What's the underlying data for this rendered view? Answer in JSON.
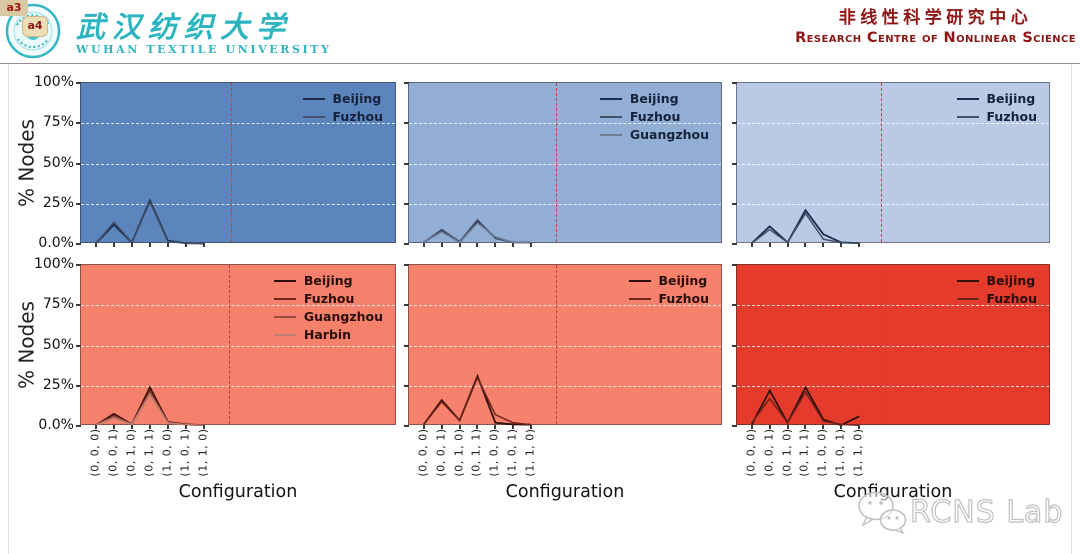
{
  "badges": {
    "a3": "a3",
    "a4": "a4"
  },
  "header": {
    "university_cn": "武汉纺织大学",
    "university_en": "WUHAN TEXTILE UNIVERSITY",
    "centre_cn": "非线性科学研究中心",
    "centre_en": "Research Centre of Nonlinear Science",
    "accent_teal": "#2cb5c0",
    "accent_dark_red": "#8e1515"
  },
  "watermark": {
    "label": "RCNS Lab",
    "icon": "wechat-icon",
    "color": "#c0c0c0"
  },
  "chart_data": [
    {
      "type": "line",
      "row": 0,
      "col": 0,
      "bg": "#5d85bd",
      "ylabel": "% Nodes",
      "xlabel": "Configuration",
      "ylim": [
        0,
        100
      ],
      "yticks": [
        "100%",
        "75%",
        "50%",
        "25%",
        "0.0%"
      ],
      "grid": "dashed-white-horizontal",
      "legend_position": "top-right",
      "legend_text_color": "#15233d",
      "categories": [
        "(0, 0, 0)",
        "(0, 0, 1)",
        "(0, 1, 0)",
        "(0, 1, 1)",
        "(1, 0, 0)",
        "(1, 0, 1)",
        "(1, 1, 0)"
      ],
      "vline_frac": 0.478,
      "vline_color": "#c0453f",
      "series": [
        {
          "name": "Beijing",
          "color": "#1b2b49",
          "values": [
            0.5,
            12,
            1,
            27,
            2,
            0.5,
            0.3
          ]
        },
        {
          "name": "Fuzhou",
          "color": "#44506b",
          "values": [
            0.5,
            13.5,
            1,
            26,
            1.5,
            0.5,
            0.3
          ]
        }
      ]
    },
    {
      "type": "line",
      "row": 0,
      "col": 1,
      "bg": "#93aed5",
      "ylabel": "% Nodes",
      "xlabel": "Configuration",
      "ylim": [
        0,
        100
      ],
      "yticks": [
        "100%",
        "75%",
        "50%",
        "25%",
        "0.0%"
      ],
      "grid": "dashed-white-horizontal",
      "legend_position": "top-right",
      "legend_text_color": "#15233d",
      "categories": [
        "(0, 0, 0)",
        "(0, 0, 1)",
        "(0, 1, 0)",
        "(0, 1, 1)",
        "(1, 0, 0)",
        "(1, 0, 1)",
        "(1, 1, 0)"
      ],
      "vline_frac": 0.47,
      "vline_color": "#c0453f",
      "series": [
        {
          "name": "Beijing",
          "color": "#1b2b49",
          "values": [
            1,
            8,
            1,
            14,
            4,
            1,
            0.8
          ]
        },
        {
          "name": "Fuzhou",
          "color": "#44506b",
          "values": [
            1,
            9,
            1.5,
            15,
            3.5,
            1,
            0.8
          ]
        },
        {
          "name": "Guangzhou",
          "color": "#707e9a",
          "values": [
            1,
            7.5,
            1,
            13,
            4.5,
            1,
            0.8
          ]
        }
      ]
    },
    {
      "type": "line",
      "row": 0,
      "col": 2,
      "bg": "#bac9e6",
      "ylabel": "% Nodes",
      "xlabel": "Configuration",
      "ylim": [
        0,
        100
      ],
      "yticks": [
        "100%",
        "75%",
        "50%",
        "25%",
        "0.0%"
      ],
      "grid": "dashed-white-horizontal",
      "legend_position": "top-right",
      "legend_text_color": "#15233d",
      "categories": [
        "(0, 0, 0)",
        "(0, 0, 1)",
        "(0, 1, 0)",
        "(0, 1, 1)",
        "(1, 0, 0)",
        "(1, 0, 1)",
        "(1, 1, 0)"
      ],
      "vline_frac": 0.46,
      "vline_color": "#c0453f",
      "series": [
        {
          "name": "Beijing",
          "color": "#1b2b49",
          "values": [
            0.5,
            11,
            1,
            21,
            6,
            1,
            0.5
          ]
        },
        {
          "name": "Fuzhou",
          "color": "#44506b",
          "values": [
            0.5,
            9,
            1,
            19,
            3,
            0.8,
            0.5
          ]
        }
      ]
    },
    {
      "type": "line",
      "row": 1,
      "col": 0,
      "bg": "#f5816d",
      "ylabel": "% Nodes",
      "xlabel": "Configuration",
      "ylim": [
        0,
        100
      ],
      "yticks": [
        "100%",
        "75%",
        "50%",
        "25%",
        "0.0%"
      ],
      "grid": "dashed-white-horizontal",
      "legend_position": "top-right",
      "legend_text_color": "#2a0d08",
      "categories": [
        "(0, 0, 0)",
        "(0, 0, 1)",
        "(0, 1, 0)",
        "(0, 1, 1)",
        "(1, 0, 0)",
        "(1, 0, 1)",
        "(1, 1, 0)"
      ],
      "vline_frac": 0.47,
      "vline_color": "#c8382e",
      "series": [
        {
          "name": "Beijing",
          "color": "#300e0a",
          "values": [
            0.5,
            7.5,
            1,
            24,
            2.5,
            1,
            0.5
          ]
        },
        {
          "name": "Fuzhou",
          "color": "#6d2419",
          "values": [
            0.5,
            6.5,
            1,
            22.5,
            2.3,
            0.9,
            0.5
          ]
        },
        {
          "name": "Guangzhou",
          "color": "#9a4a3c",
          "values": [
            0.5,
            6,
            1,
            21,
            2.2,
            0.8,
            0.5
          ]
        },
        {
          "name": "Harbin",
          "color": "#bd7f72",
          "values": [
            0.5,
            5,
            1,
            19.5,
            2,
            0.8,
            0.5
          ]
        }
      ]
    },
    {
      "type": "line",
      "row": 1,
      "col": 1,
      "bg": "#f6826e",
      "ylabel": "% Nodes",
      "xlabel": "Configuration",
      "ylim": [
        0,
        100
      ],
      "yticks": [
        "100%",
        "75%",
        "50%",
        "25%",
        "0.0%"
      ],
      "grid": "dashed-white-horizontal",
      "legend_position": "top-right",
      "legend_text_color": "#2a0d08",
      "categories": [
        "(0, 0, 0)",
        "(0, 0, 1)",
        "(0, 1, 0)",
        "(0, 1, 1)",
        "(1, 0, 0)",
        "(1, 0, 1)",
        "(1, 1, 0)"
      ],
      "vline_frac": 0.47,
      "vline_color": "#c8382e",
      "series": [
        {
          "name": "Beijing",
          "color": "#300e0a",
          "values": [
            1,
            16,
            3.5,
            31,
            2,
            1,
            0.8
          ]
        },
        {
          "name": "Fuzhou",
          "color": "#6d2419",
          "values": [
            1,
            15,
            3.5,
            30,
            7,
            2,
            0.8
          ]
        }
      ]
    },
    {
      "type": "line",
      "row": 1,
      "col": 2,
      "bg": "#e53b2c",
      "ylabel": "% Nodes",
      "xlabel": "Configuration",
      "ylim": [
        0,
        100
      ],
      "yticks": [
        "100%",
        "75%",
        "50%",
        "25%",
        "0.0%"
      ],
      "grid": "dashed-white-horizontal",
      "legend_position": "top-right",
      "legend_text_color": "#2a0d08",
      "categories": [
        "(0, 0, 0)",
        "(0, 0, 1)",
        "(0, 1, 0)",
        "(0, 1, 1)",
        "(1, 0, 0)",
        "(1, 0, 1)",
        "(1, 1, 0)"
      ],
      "vline_frac": 0.46,
      "vline_color": "#d63a2b",
      "series": [
        {
          "name": "Beijing",
          "color": "#300e0a",
          "values": [
            1,
            22,
            2,
            24,
            4,
            0.5,
            6
          ]
        },
        {
          "name": "Fuzhou",
          "color": "#6d2419",
          "values": [
            2,
            17,
            2,
            21,
            3,
            1,
            0.5
          ]
        }
      ]
    }
  ]
}
